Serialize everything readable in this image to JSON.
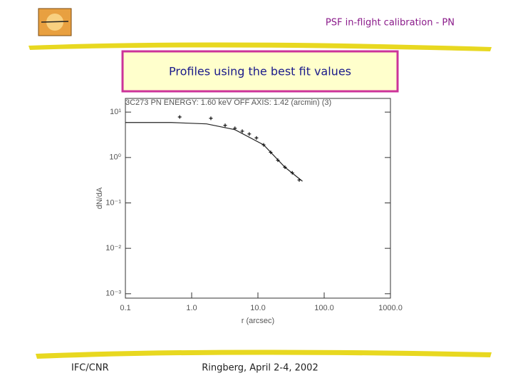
{
  "header": {
    "title": "PSF in-flight calibration - PN"
  },
  "banner": {
    "text": "Profiles using the best fit values"
  },
  "footer": {
    "left": "IFC/CNR",
    "center": "Ringberg, April 2-4, 2002"
  },
  "chart_data": {
    "type": "scatter",
    "title": "3C273    PN    ENERGY: 1.60 keV    OFF AXIS: 1.42 (arcmin)    (3)",
    "x_label": "r (arcsec)",
    "y_label": "dN/dA",
    "log_x": true,
    "log_y": true,
    "xlim": [
      0.1,
      1000
    ],
    "ylim": [
      0.0008,
      20
    ],
    "xticks": [
      0.1,
      {
        "value": 1,
        "label": "1.0"
      },
      {
        "value": 10,
        "label": "10.0"
      },
      {
        "value": 100,
        "label": "100.0"
      },
      {
        "value": 1000,
        "label": "1000.0"
      }
    ],
    "yticks": [
      {
        "value": 10,
        "label": "10¹"
      },
      {
        "value": 1,
        "label": "10⁰"
      },
      {
        "value": 0.1,
        "label": "10⁻¹"
      },
      {
        "value": 0.01,
        "label": "10⁻²"
      },
      {
        "value": 0.001,
        "label": "10⁻³"
      }
    ],
    "series": [
      {
        "style": "line",
        "color": "#222222",
        "x": [
          0.1,
          0.49,
          1.68,
          4.5,
          12.2,
          25.6,
          47
        ],
        "values": [
          5.9,
          5.9,
          5.5,
          4.1,
          1.9,
          0.61,
          0.3
        ]
      },
      {
        "style": "markers",
        "color": "#111111",
        "x": [
          0.66,
          1.95,
          3.2,
          4.5,
          5.8,
          7.4,
          9.5,
          12.2,
          15.6,
          20,
          25.6,
          33,
          42
        ],
        "values": [
          7.8,
          7.3,
          5.1,
          4.4,
          3.8,
          3.3,
          2.7,
          1.9,
          1.3,
          0.87,
          0.61,
          0.46,
          0.32
        ]
      }
    ]
  }
}
